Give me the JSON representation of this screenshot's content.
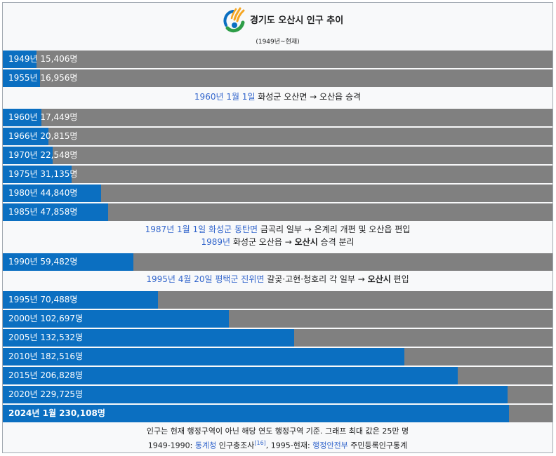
{
  "header": {
    "title": "경기도 오산시 인구 추이",
    "subtitle": "(1949년~현재)"
  },
  "colors": {
    "bar": "#0b6fc1",
    "track": "#808080",
    "link": "#3366cc"
  },
  "chart_data": {
    "type": "bar",
    "orientation": "horizontal",
    "xlim": [
      0,
      250000
    ],
    "series": [
      {
        "values": [
          15406,
          16956,
          17449,
          20815,
          22548,
          31135,
          44840,
          47858,
          59482,
          70488,
          102697,
          132532,
          182516,
          206828,
          229725,
          230108
        ]
      }
    ],
    "categories": [
      "1949년",
      "1955년",
      "1960년",
      "1966년",
      "1970년",
      "1975년",
      "1980년",
      "1985년",
      "1990년",
      "1995년",
      "2000년",
      "2005년",
      "2010년",
      "2015년",
      "2020년",
      "2024년 1월"
    ],
    "labels": [
      "1949년 15,406명",
      "1955년 16,956명",
      "1960년 17,449명",
      "1966년 20,815명",
      "1970년 22,548명",
      "1975년 31,135명",
      "1980년 44,840명",
      "1985년 47,858명",
      "1990년 59,482명",
      "1995년 70,488명",
      "2000년 102,697명",
      "2005년 132,532명",
      "2010년 182,516명",
      "2015년 206,828명",
      "2020년 229,725명",
      "2024년 1월 230,108명"
    ]
  },
  "notes": {
    "n1": {
      "date": "1960년 1월 1일",
      "text": " 화성군 오산면 → 오산읍 승격"
    },
    "n2": {
      "line1_date": "1987년 1월 1일",
      "line1_place": "화성군 동탄면",
      "line1_text": " 금곡리 일부 → 은계리 개편 및 오산읍 편입",
      "line2_year": "1989년",
      "line2_text_a": " 화성군 오산읍 → ",
      "line2_bold": "오산시",
      "line2_text_b": " 승격 분리"
    },
    "n3": {
      "date": "1995년 4월 20일",
      "place": "평택군 진위면",
      "text_a": " 갈곶·고현·청호리 각 일부 → ",
      "bold": "오산시",
      "text_b": " 편입"
    }
  },
  "footer": {
    "line1": "인구는 현재 행정구역이 아닌 해당 연도 행정구역 기준. 그래프 최대 값은 25만 명",
    "line2_a": "1949-1990: ",
    "line2_link1": "통계청",
    "line2_b": " 인구총조사",
    "line2_ref": "[16]",
    "line2_c": ", 1995-현재: ",
    "line2_link2": "행정안전부",
    "line2_d": " 주민등록인구통계"
  }
}
